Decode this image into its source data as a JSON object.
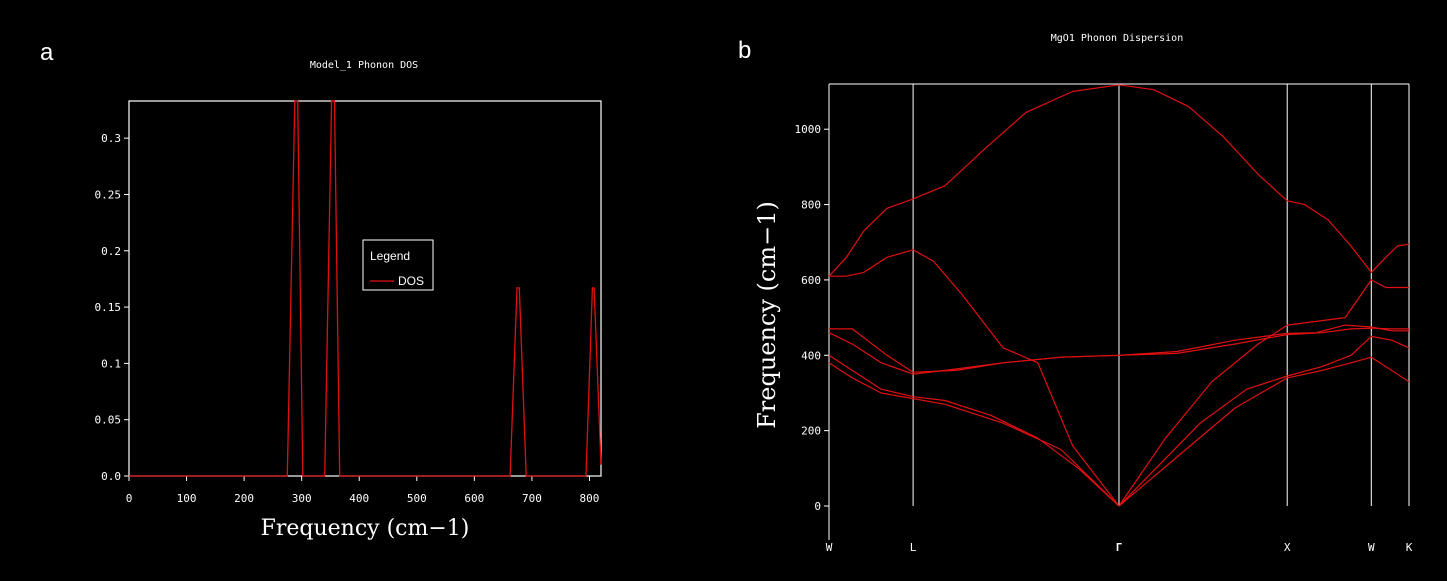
{
  "chart_data": [
    {
      "type": "line",
      "panel_label": "a",
      "title": "Model_1 Phonon DOS",
      "xlabel": "Frequency (cm−1)",
      "ylabel": "",
      "xlim": [
        0,
        820
      ],
      "ylim": [
        0,
        0.333
      ],
      "xticks": [
        0,
        100,
        200,
        300,
        400,
        500,
        600,
        700,
        800
      ],
      "xtick_labels": [
        "0",
        "100",
        "200",
        "300",
        "400",
        "500",
        "600",
        "700",
        "800"
      ],
      "yticks": [
        0,
        0.05,
        0.1,
        0.15,
        0.2,
        0.25,
        0.3
      ],
      "ytick_labels": [
        "0.0",
        "0.05",
        "0.1",
        "0.15",
        "0.2",
        "0.25",
        "0.3"
      ],
      "grid": false,
      "legend": {
        "title": "Legend",
        "entries": [
          "DOS"
        ],
        "placement": "center-right"
      },
      "series": [
        {
          "name": "DOS",
          "color": "#e01010",
          "x": [
            0,
            275,
            288,
            293,
            302,
            340,
            352,
            357,
            366,
            662,
            674,
            678,
            690,
            794,
            805,
            808,
            820
          ],
          "y": [
            0,
            0,
            0.333,
            0.333,
            0,
            0,
            0.333,
            0.333,
            0,
            0,
            0.167,
            0.167,
            0,
            0,
            0.167,
            0.167,
            0.01
          ]
        }
      ]
    },
    {
      "type": "line",
      "panel_label": "b",
      "title": "MgO1 Phonon Dispersion",
      "xlabel": "",
      "ylabel": "Frequency (cm−1)",
      "ylim": [
        0,
        1120
      ],
      "yticks": [
        0,
        200,
        400,
        600,
        800,
        1000
      ],
      "ytick_labels": [
        "0",
        "200",
        "400",
        "600",
        "800",
        "1000"
      ],
      "xlim": [
        0,
        1
      ],
      "x_points": [
        {
          "label": "W",
          "x": 0.0
        },
        {
          "label": "L",
          "x": 0.145
        },
        {
          "label": "Γ",
          "x": 0.5
        },
        {
          "label": "X",
          "x": 0.79
        },
        {
          "label": "W",
          "x": 0.935
        },
        {
          "label": "K",
          "x": 1.0
        }
      ],
      "grid": false,
      "line_color": "#e01010",
      "series": [
        {
          "x": [
            0,
            0.03,
            0.06,
            0.1,
            0.145,
            0.2,
            0.27,
            0.34,
            0.42,
            0.5,
            0.56,
            0.62,
            0.68,
            0.74,
            0.79,
            0.82,
            0.86,
            0.9,
            0.935,
            0.96,
            0.98,
            1.0
          ],
          "y": [
            610,
            660,
            730,
            790,
            815,
            850,
            950,
            1045,
            1100,
            1118,
            1105,
            1060,
            980,
            880,
            810,
            800,
            760,
            690,
            620,
            660,
            690,
            695
          ]
        },
        {
          "x": [
            0,
            0.03,
            0.06,
            0.1,
            0.145,
            0.18,
            0.23,
            0.3,
            0.36,
            0.42,
            0.5,
            0.58,
            0.66,
            0.74,
            0.79,
            0.84,
            0.89,
            0.935,
            0.96,
            1.0
          ],
          "y": [
            610,
            610,
            620,
            660,
            680,
            650,
            560,
            420,
            380,
            160,
            0,
            180,
            330,
            430,
            480,
            490,
            500,
            600,
            580,
            580
          ]
        },
        {
          "x": [
            0,
            0.04,
            0.1,
            0.145,
            0.22,
            0.3,
            0.4,
            0.5,
            0.6,
            0.7,
            0.79,
            0.84,
            0.89,
            0.935,
            0.97,
            1.0
          ],
          "y": [
            470,
            470,
            400,
            355,
            360,
            380,
            395,
            400,
            410,
            440,
            458,
            460,
            480,
            475,
            465,
            465
          ]
        },
        {
          "x": [
            0,
            0.04,
            0.09,
            0.145,
            0.2,
            0.3,
            0.4,
            0.5,
            0.6,
            0.7,
            0.79,
            0.85,
            0.9,
            0.935,
            0.97,
            1.0
          ],
          "y": [
            460,
            430,
            380,
            350,
            360,
            380,
            395,
            400,
            405,
            430,
            455,
            460,
            470,
            472,
            470,
            470
          ]
        },
        {
          "x": [
            0,
            0.04,
            0.09,
            0.145,
            0.2,
            0.28,
            0.36,
            0.43,
            0.5,
            0.57,
            0.64,
            0.72,
            0.79,
            0.85,
            0.9,
            0.935,
            0.97,
            1.0
          ],
          "y": [
            400,
            360,
            310,
            290,
            280,
            240,
            180,
            100,
            0,
            110,
            220,
            310,
            345,
            370,
            400,
            450,
            440,
            420
          ]
        },
        {
          "x": [
            0,
            0.04,
            0.09,
            0.145,
            0.2,
            0.3,
            0.4,
            0.5,
            0.6,
            0.7,
            0.79,
            0.85,
            0.9,
            0.935,
            0.97,
            1.0
          ],
          "y": [
            380,
            340,
            300,
            285,
            270,
            220,
            150,
            0,
            130,
            260,
            340,
            360,
            380,
            395,
            360,
            330
          ]
        }
      ]
    }
  ]
}
